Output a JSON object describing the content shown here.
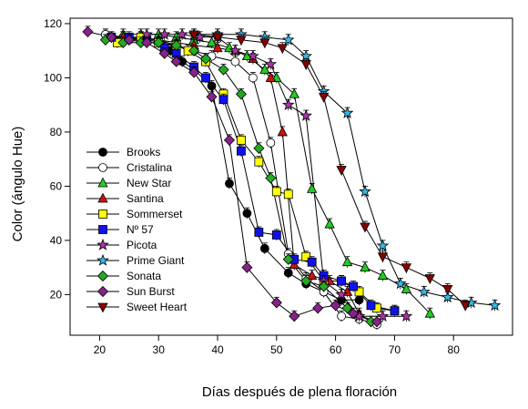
{
  "chart_data": {
    "type": "scatter",
    "title": "",
    "xlabel": "Días después de plena floración",
    "ylabel": "Color (ángulo Hue)",
    "xlim": [
      15,
      90
    ],
    "ylim": [
      5,
      122
    ],
    "xticks": [
      20,
      30,
      40,
      50,
      60,
      70,
      80
    ],
    "yticks": [
      20,
      40,
      60,
      80,
      100,
      120
    ],
    "grid": false,
    "legend_position": "left",
    "series": [
      {
        "name": "Brooks",
        "marker": "circle",
        "fill": "#000000",
        "points": [
          [
            21,
            116
          ],
          [
            25,
            114
          ],
          [
            28,
            114
          ],
          [
            32,
            110
          ],
          [
            34,
            106
          ],
          [
            36,
            103
          ],
          [
            39,
            97
          ],
          [
            42,
            61
          ],
          [
            45,
            50
          ],
          [
            48,
            37
          ],
          [
            52,
            28
          ],
          [
            55,
            24
          ],
          [
            58,
            21
          ],
          [
            61,
            18
          ],
          [
            64,
            18
          ]
        ]
      },
      {
        "name": "Cristalina",
        "marker": "circle",
        "fill": "#ffffff",
        "points": [
          [
            21,
            116
          ],
          [
            24,
            115
          ],
          [
            27,
            115
          ],
          [
            30,
            114
          ],
          [
            33,
            112
          ],
          [
            36,
            110
          ],
          [
            39,
            108
          ],
          [
            43,
            106
          ],
          [
            46,
            100
          ],
          [
            49,
            76
          ],
          [
            52,
            35
          ],
          [
            55,
            26
          ],
          [
            58,
            21
          ],
          [
            61,
            12
          ],
          [
            64,
            11
          ],
          [
            67,
            9
          ]
        ]
      },
      {
        "name": "New Star",
        "marker": "triangle-up",
        "fill": "#22cc22",
        "points": [
          [
            24,
            116
          ],
          [
            27,
            116
          ],
          [
            30,
            116
          ],
          [
            33,
            115
          ],
          [
            36,
            114
          ],
          [
            39,
            113
          ],
          [
            42,
            111
          ],
          [
            45,
            108
          ],
          [
            48,
            103
          ],
          [
            50,
            100
          ],
          [
            53,
            94
          ],
          [
            56,
            59
          ],
          [
            59,
            46
          ],
          [
            62,
            32
          ],
          [
            65,
            30
          ],
          [
            68,
            27
          ],
          [
            72,
            22
          ],
          [
            76,
            13
          ]
        ]
      },
      {
        "name": "Santina",
        "marker": "triangle-up",
        "fill": "#cc1111",
        "points": [
          [
            24,
            115
          ],
          [
            27,
            114
          ],
          [
            30,
            114
          ],
          [
            33,
            113
          ],
          [
            36,
            112
          ],
          [
            40,
            111
          ],
          [
            43,
            110
          ],
          [
            46,
            107
          ],
          [
            49,
            100
          ],
          [
            51,
            80
          ],
          [
            53,
            31
          ],
          [
            56,
            27
          ],
          [
            59,
            25
          ],
          [
            62,
            21
          ],
          [
            64,
            13
          ]
        ]
      },
      {
        "name": "Sommerset",
        "marker": "square",
        "fill": "#ffff00",
        "points": [
          [
            23,
            113
          ],
          [
            27,
            115
          ],
          [
            30,
            113
          ],
          [
            33,
            112
          ],
          [
            35,
            110
          ],
          [
            38,
            106
          ],
          [
            41,
            94
          ],
          [
            44,
            77
          ],
          [
            47,
            69
          ],
          [
            50,
            58
          ],
          [
            52,
            57
          ],
          [
            55,
            34
          ],
          [
            58,
            25
          ],
          [
            61,
            25
          ],
          [
            64,
            21
          ],
          [
            67,
            15
          ],
          [
            70,
            14
          ]
        ]
      },
      {
        "name": "Nº 57",
        "marker": "square",
        "fill": "#1111ee",
        "points": [
          [
            22,
            115
          ],
          [
            25,
            115
          ],
          [
            28,
            114
          ],
          [
            31,
            111
          ],
          [
            33,
            109
          ],
          [
            36,
            104
          ],
          [
            38,
            100
          ],
          [
            41,
            92
          ],
          [
            44,
            73
          ],
          [
            47,
            43
          ],
          [
            50,
            42
          ],
          [
            53,
            33
          ],
          [
            56,
            32
          ],
          [
            58,
            27
          ],
          [
            61,
            25
          ],
          [
            63,
            23
          ],
          [
            66,
            16
          ],
          [
            70,
            14
          ]
        ]
      },
      {
        "name": "Picota",
        "marker": "star",
        "fill": "#aa33aa",
        "points": [
          [
            28,
            116
          ],
          [
            31,
            116
          ],
          [
            34,
            116
          ],
          [
            37,
            115
          ],
          [
            40,
            115
          ],
          [
            43,
            110
          ],
          [
            46,
            108
          ],
          [
            49,
            105
          ],
          [
            52,
            90
          ],
          [
            55,
            86
          ],
          [
            58,
            25
          ],
          [
            61,
            20
          ],
          [
            64,
            12
          ],
          [
            68,
            12
          ],
          [
            72,
            12
          ]
        ]
      },
      {
        "name": "Prime Giant",
        "marker": "star",
        "fill": "#33bbee",
        "points": [
          [
            36,
            116
          ],
          [
            40,
            116
          ],
          [
            44,
            116
          ],
          [
            48,
            115
          ],
          [
            52,
            114
          ],
          [
            55,
            108
          ],
          [
            58,
            95
          ],
          [
            62,
            87
          ],
          [
            65,
            58
          ],
          [
            68,
            38
          ],
          [
            71,
            24
          ],
          [
            75,
            21
          ],
          [
            79,
            19
          ],
          [
            83,
            17
          ],
          [
            87,
            16
          ]
        ]
      },
      {
        "name": "Sonata",
        "marker": "diamond",
        "fill": "#22aa22",
        "points": [
          [
            21,
            114
          ],
          [
            24,
            113
          ],
          [
            27,
            113
          ],
          [
            30,
            113
          ],
          [
            33,
            112
          ],
          [
            36,
            110
          ],
          [
            38,
            107
          ],
          [
            41,
            103
          ],
          [
            44,
            94
          ],
          [
            47,
            74
          ],
          [
            49,
            63
          ],
          [
            52,
            33
          ],
          [
            55,
            25
          ],
          [
            58,
            23
          ],
          [
            62,
            15
          ],
          [
            66,
            10
          ]
        ]
      },
      {
        "name": "Sun Burst",
        "marker": "diamond",
        "fill": "#882288",
        "points": [
          [
            18,
            117
          ],
          [
            22,
            115
          ],
          [
            25,
            114
          ],
          [
            28,
            113
          ],
          [
            31,
            109
          ],
          [
            33,
            106
          ],
          [
            36,
            102
          ],
          [
            39,
            93
          ],
          [
            42,
            77
          ],
          [
            45,
            30
          ],
          [
            50,
            17
          ],
          [
            53,
            12
          ],
          [
            57,
            15
          ],
          [
            60,
            16
          ],
          [
            63,
            13
          ],
          [
            67,
            10
          ]
        ]
      },
      {
        "name": "Sweet Heart",
        "marker": "triangle-down",
        "fill": "#880000",
        "points": [
          [
            36,
            116
          ],
          [
            40,
            115
          ],
          [
            44,
            114
          ],
          [
            48,
            113
          ],
          [
            51,
            111
          ],
          [
            55,
            105
          ],
          [
            58,
            93
          ],
          [
            61,
            66
          ],
          [
            65,
            45
          ],
          [
            68,
            34
          ],
          [
            72,
            30
          ],
          [
            76,
            26
          ],
          [
            79,
            22
          ],
          [
            82,
            16
          ]
        ]
      }
    ]
  }
}
